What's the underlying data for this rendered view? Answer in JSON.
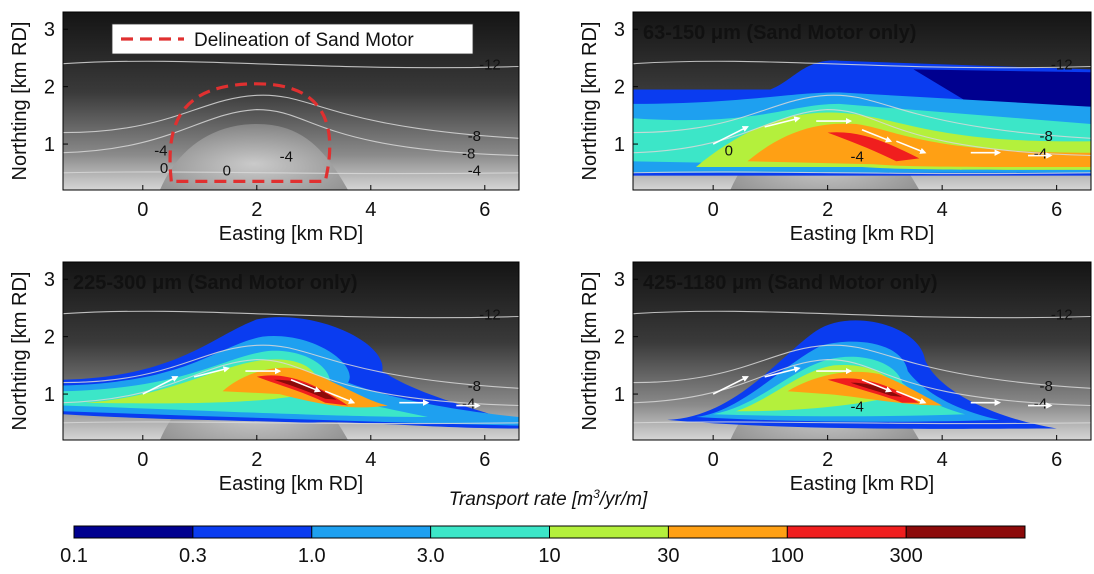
{
  "chart_data": {
    "type": "heatmap",
    "panels": [
      {
        "title": "",
        "legend_label": "Delineation of Sand Motor",
        "xlabel": "Easting [km RD]",
        "ylabel": "Northting [km RD]",
        "xticks": [
          "0",
          "2",
          "4",
          "6"
        ],
        "yticks": [
          "1",
          "2",
          "3"
        ],
        "xlim": [
          -1.4,
          6.6
        ],
        "ylim": [
          0.2,
          3.3
        ],
        "contour_labels": [
          "-12",
          "-8",
          "-8",
          "-4",
          "-4",
          "-4",
          "0",
          "0"
        ]
      },
      {
        "title": "63-150 μm (Sand Motor only)",
        "xlabel": "Easting [km RD]",
        "ylabel": "Northting [km RD]",
        "xticks": [
          "0",
          "2",
          "4",
          "6"
        ],
        "yticks": [
          "1",
          "2",
          "3"
        ],
        "xlim": [
          -1.4,
          6.6
        ],
        "ylim": [
          0.2,
          3.3
        ],
        "contour_labels": [
          "-12",
          "-8",
          "-4",
          "-4",
          "0"
        ]
      },
      {
        "title": "225-300 μm (Sand Motor only)",
        "xlabel": "Easting [km RD]",
        "ylabel": "Northting [km RD]",
        "xticks": [
          "0",
          "2",
          "4",
          "6"
        ],
        "yticks": [
          "1",
          "2",
          "3"
        ],
        "xlim": [
          -1.4,
          6.6
        ],
        "ylim": [
          0.2,
          3.3
        ],
        "contour_labels": [
          "-12",
          "-8",
          "-4"
        ]
      },
      {
        "title": "425-1180 μm (Sand Motor only)",
        "xlabel": "Easting [km RD]",
        "ylabel": "Northting [km RD]",
        "xticks": [
          "0",
          "2",
          "4",
          "6"
        ],
        "yticks": [
          "1",
          "2",
          "3"
        ],
        "xlim": [
          -1.4,
          6.6
        ],
        "ylim": [
          0.2,
          3.3
        ],
        "contour_labels": [
          "-12",
          "-8",
          "-4",
          "-4"
        ]
      }
    ],
    "colorbar": {
      "label": "Transport rate [m3/yr/m]",
      "label_main": "Transport rate [m",
      "label_sup": "3",
      "label_tail": "/yr/m]",
      "ticks": [
        "0.1",
        "0.3",
        "1.0",
        "3.0",
        "10",
        "30",
        "100",
        "300"
      ],
      "colors": [
        "#00008f",
        "#0a3cf0",
        "#1ea0f0",
        "#3ce6c8",
        "#b4f03c",
        "#ffa014",
        "#f01e1e",
        "#8c0a0a"
      ]
    },
    "colors": {
      "delineation": "#e03030",
      "background_dark": "#141414",
      "background_light": "#c8c8c8",
      "contour": "#d8d8d8"
    }
  }
}
